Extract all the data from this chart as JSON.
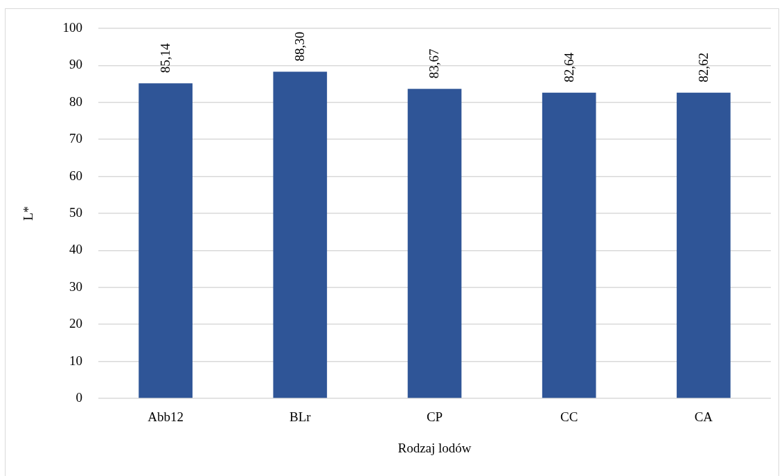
{
  "chart_data": {
    "type": "bar",
    "xlabel": "Rodzaj lodów",
    "ylabel": "L*",
    "categories": [
      "Abb12",
      "BLr",
      "CP",
      "CC",
      "CA"
    ],
    "values": [
      85.14,
      88.3,
      83.67,
      82.64,
      82.62
    ],
    "color": "#2f5597",
    "value_labels": [
      "85,14",
      "88,30",
      "83,67",
      "82,64",
      "82,62"
    ],
    "ylim": [
      0,
      100
    ],
    "yticks": [
      0,
      10,
      20,
      30,
      40,
      50,
      60,
      70,
      80,
      90,
      100
    ],
    "grid": "y"
  }
}
